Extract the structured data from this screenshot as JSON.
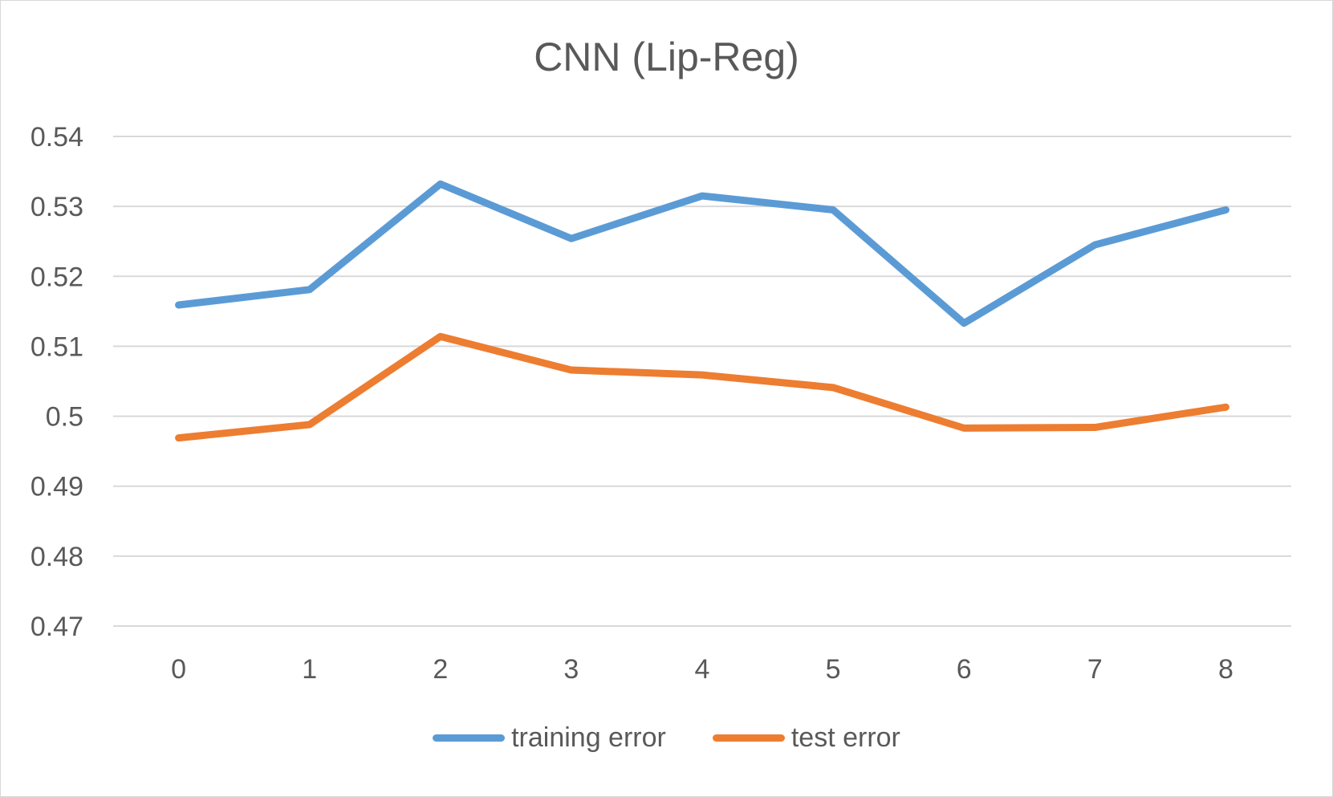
{
  "chart_data": {
    "type": "line",
    "title": "CNN (Lip-Reg)",
    "xlabel": "",
    "ylabel": "",
    "categories": [
      "0",
      "1",
      "2",
      "3",
      "4",
      "5",
      "6",
      "7",
      "8"
    ],
    "ylim": [
      0.47,
      0.54
    ],
    "yticks": [
      "0.47",
      "0.48",
      "0.49",
      "0.5",
      "0.51",
      "0.52",
      "0.53",
      "0.54"
    ],
    "grid": true,
    "legend_position": "bottom",
    "series": [
      {
        "name": "training error",
        "color": "#5b9bd5",
        "values": [
          0.5159,
          0.5181,
          0.5332,
          0.5254,
          0.5315,
          0.5295,
          0.5133,
          0.5245,
          0.5295
        ]
      },
      {
        "name": "test error",
        "color": "#ed7d31",
        "values": [
          0.4969,
          0.4988,
          0.5114,
          0.5066,
          0.5059,
          0.5041,
          0.4983,
          0.4984,
          0.5013
        ]
      }
    ]
  }
}
